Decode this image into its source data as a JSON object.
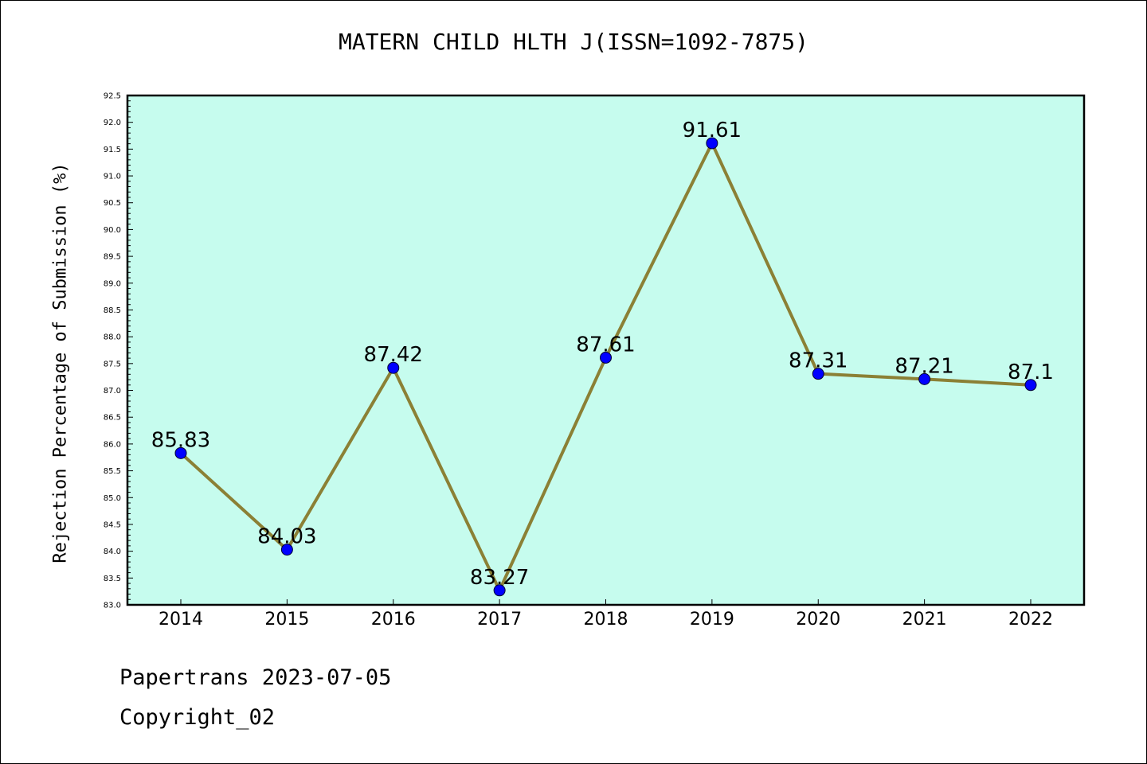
{
  "chart_data": {
    "type": "line",
    "title": "MATERN CHILD HLTH J(ISSN=1092-7875)",
    "ylabel": "Rejection Percentage of Submission (%)",
    "xlabel": "",
    "categories": [
      "2014",
      "2015",
      "2016",
      "2017",
      "2018",
      "2019",
      "2020",
      "2021",
      "2022"
    ],
    "values": [
      85.83,
      84.03,
      87.42,
      83.27,
      87.61,
      91.61,
      87.31,
      87.21,
      87.1
    ],
    "data_labels": [
      "85.83",
      "84.03",
      "87.42",
      "83.27",
      "87.61",
      "91.61",
      "87.31",
      "87.21",
      "87.1"
    ],
    "ylim": [
      83.0,
      92.5
    ],
    "yticks": [
      "83.0",
      "83.5",
      "84.0",
      "84.5",
      "85.0",
      "85.5",
      "86.0",
      "86.5",
      "87.0",
      "87.5",
      "88.0",
      "88.5",
      "89.0",
      "89.5",
      "90.0",
      "90.5",
      "91.0",
      "91.5",
      "92.0",
      "92.5"
    ],
    "grid": false,
    "colors": {
      "plot_background": "#c6fcee",
      "line": "#8b8035",
      "marker": "#0000ff"
    }
  },
  "footer": {
    "line1": "Papertrans 2023-07-05",
    "line2": "Copyright_02"
  }
}
